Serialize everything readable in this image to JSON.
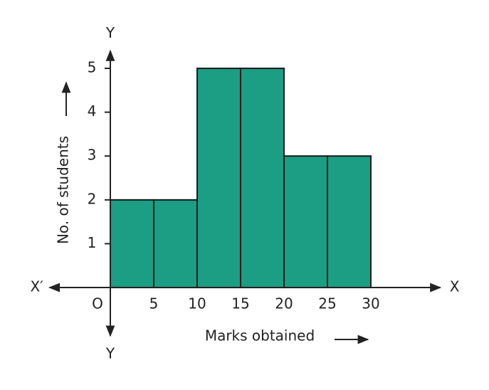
{
  "chart_data": {
    "type": "histogram",
    "bins": [
      0,
      5,
      10,
      15,
      20,
      25,
      30
    ],
    "values": [
      2,
      2,
      5,
      5,
      3,
      3
    ],
    "color": "#1b9e83",
    "edge_color": "#1a1a1a",
    "x_label": "Marks obtained",
    "y_label": "No. of students",
    "axis_names": {
      "x_positive": "X",
      "x_negative": "X′",
      "y_positive": "Y",
      "y_negative": "Y"
    },
    "xlim": [
      -7,
      38
    ],
    "ylim": [
      -1.1,
      5.4
    ],
    "xticks": [
      {
        "value": 0,
        "label": "O"
      },
      5,
      10,
      15,
      20,
      25,
      30
    ],
    "yticks": [
      1,
      2,
      3,
      4,
      5
    ]
  }
}
